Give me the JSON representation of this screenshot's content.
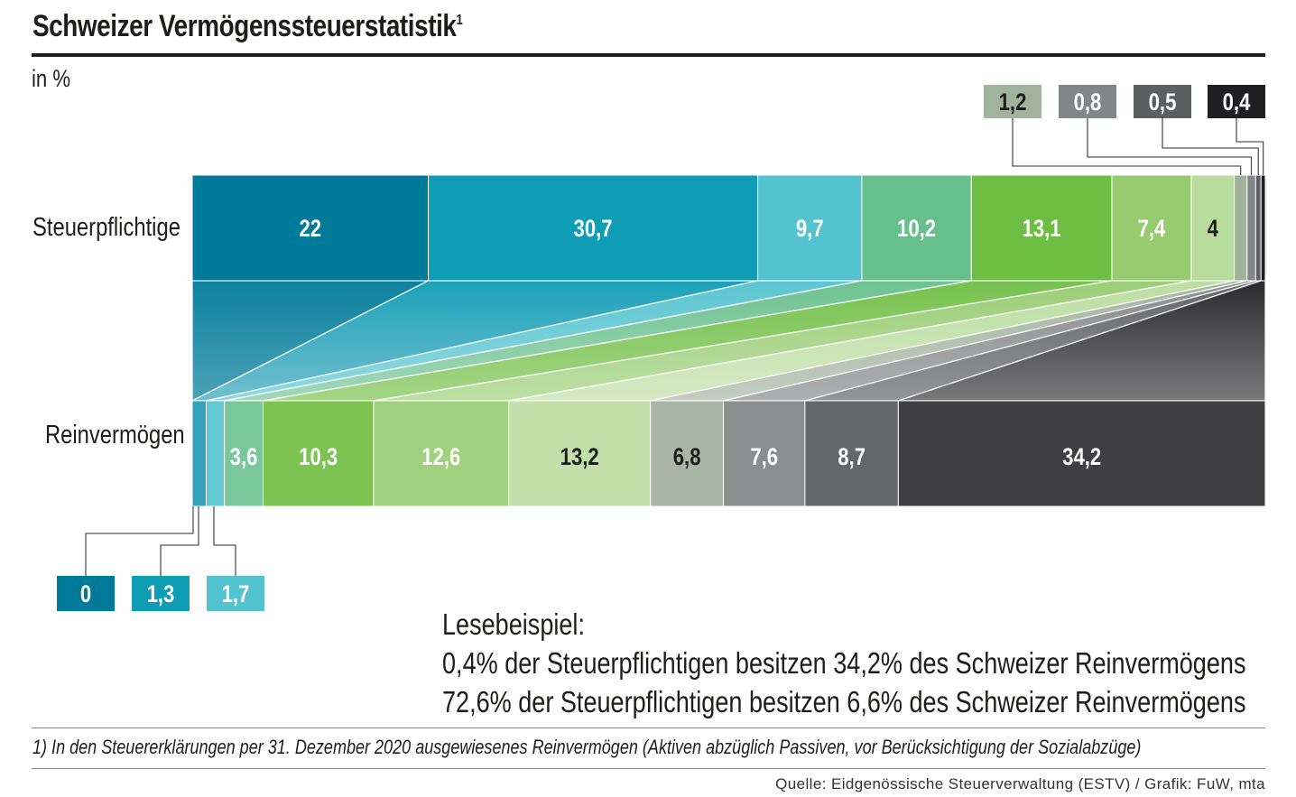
{
  "title": "Schweizer Vermögenssteuerstatistik",
  "title_footnote_mark": "1",
  "unit": "in %",
  "reading_example": {
    "heading": "Lesebeispiel:",
    "line1": "0,4% der Steuerpflichtigen besitzen 34,2% des Schweizer Reinvermögens",
    "line2": "72,6% der Steuerpflichtigen besitzen 6,6% des Schweizer Reinvermögens"
  },
  "footnote": "1) In den Steuererklärungen per 31. Dezember 2020 ausgewiesenes Reinvermögen (Aktiven abzüglich Passiven, vor Berücksichtigung der Sozialabzüge)",
  "source": "Quelle: Eidgenössische Steuerverwaltung (ESTV) / Grafik: FuW, mta",
  "chart_data": {
    "type": "stacked-bar-100",
    "title": "Schweizer Vermögenssteuerstatistik",
    "ylabel": "in %",
    "categories": [
      "Steuerpflichtige",
      "Reinvermögen"
    ],
    "segments": [
      {
        "steuerpflichtige": 22,
        "reinvermoegen": 0,
        "labels": [
          "22",
          "0"
        ],
        "color_top": "#007a99",
        "color_bottom": "#007a99"
      },
      {
        "steuerpflichtige": 30.7,
        "reinvermoegen": 1.3,
        "labels": [
          "30,7",
          "1,3"
        ],
        "color_top": "#0e9db5",
        "color_bottom": "#33a3bb"
      },
      {
        "steuerpflichtige": 9.7,
        "reinvermoegen": 1.7,
        "labels": [
          "9,7",
          "1,7"
        ],
        "color_top": "#52c3cf",
        "color_bottom": "#62c8d2"
      },
      {
        "steuerpflichtige": 10.2,
        "reinvermoegen": 3.6,
        "labels": [
          "10,2",
          "3,6"
        ],
        "color_top": "#66bf8c",
        "color_bottom": "#79c79a"
      },
      {
        "steuerpflichtige": 13.1,
        "reinvermoegen": 10.3,
        "labels": [
          "13,1",
          "10,3"
        ],
        "color_top": "#6fbe44",
        "color_bottom": "#7cc352"
      },
      {
        "steuerpflichtige": 7.4,
        "reinvermoegen": 12.6,
        "labels": [
          "7,4",
          "12,6"
        ],
        "color_top": "#96cb70",
        "color_bottom": "#a0d17e"
      },
      {
        "steuerpflichtige": 4,
        "reinvermoegen": 13.2,
        "labels": [
          "4",
          "13,2"
        ],
        "color_top": "#b8dc9c",
        "color_bottom": "#c3e0aa"
      },
      {
        "steuerpflichtige": 1.2,
        "reinvermoegen": 6.8,
        "labels": [
          "1,2",
          "6,8"
        ],
        "color_top": "#a2b39d",
        "color_bottom": "#a9b6a5"
      },
      {
        "steuerpflichtige": 0.8,
        "reinvermoegen": 7.6,
        "labels": [
          "0,8",
          "7,6"
        ],
        "color_top": "#838689",
        "color_bottom": "#8c8d8f"
      },
      {
        "steuerpflichtige": 0.5,
        "reinvermoegen": 8.7,
        "labels": [
          "0,5",
          "8,7"
        ],
        "color_top": "#5c5e61",
        "color_bottom": "#656668"
      },
      {
        "steuerpflichtige": 0.4,
        "reinvermoegen": 34.2,
        "labels": [
          "0,4",
          "34,2"
        ],
        "color_top": "#1f1f21",
        "color_bottom": "#3f3f41"
      }
    ],
    "dark_label_segments_top": [
      6
    ],
    "dark_label_segments_bottom": [
      6,
      7
    ],
    "callouts_top": [
      7,
      8,
      9,
      10
    ],
    "callouts_bottom": [
      0,
      1,
      2
    ],
    "xlim": [
      0,
      100
    ]
  }
}
